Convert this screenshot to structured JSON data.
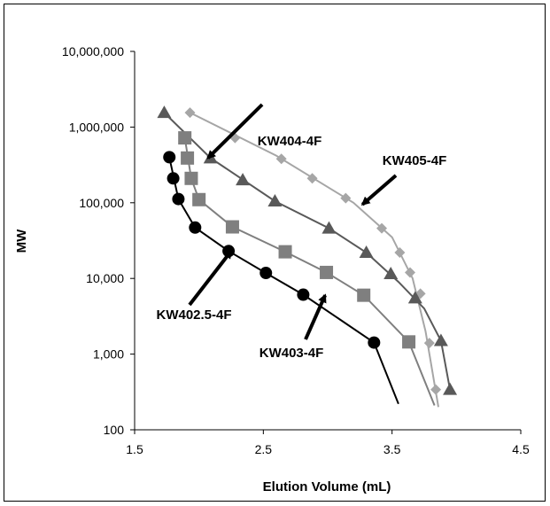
{
  "chart_data": {
    "type": "scatter",
    "xlabel": "Elution Volume (mL)",
    "ylabel": "MW",
    "xlim": [
      1.5,
      4.5
    ],
    "ylim": [
      100,
      10000000
    ],
    "y_scale": "log",
    "grid": false,
    "legend": "none",
    "x_ticks": [
      "1.5",
      "2.5",
      "3.5",
      "4.5"
    ],
    "y_ticks": [
      "100",
      "1,000",
      "10,000",
      "100,000",
      "1,000,000",
      "10,000,000"
    ],
    "series": [
      {
        "name": "KW405-4F",
        "marker": "diamond",
        "color": "#a6a6a6",
        "points": [
          [
            1.93,
            1550000
          ],
          [
            2.28,
            720000
          ],
          [
            2.64,
            380000
          ],
          [
            2.88,
            210000
          ],
          [
            3.14,
            115000
          ],
          [
            3.42,
            46000
          ],
          [
            3.56,
            22000
          ],
          [
            3.64,
            12000
          ],
          [
            3.72,
            6300
          ],
          [
            3.79,
            1400
          ],
          [
            3.84,
            340
          ]
        ],
        "fit": [
          [
            1.93,
            1550000
          ],
          [
            2.6,
            420000
          ],
          [
            3.2,
            100000
          ],
          [
            3.5,
            35000
          ],
          [
            3.66,
            10000
          ],
          [
            3.76,
            2000
          ],
          [
            3.86,
            200
          ]
        ]
      },
      {
        "name": "KW404-4F",
        "marker": "triangle",
        "color": "#595959",
        "points": [
          [
            1.73,
            1550000
          ],
          [
            2.09,
            390000
          ],
          [
            2.34,
            200000
          ],
          [
            2.59,
            105000
          ],
          [
            3.01,
            46000
          ],
          [
            3.3,
            22000
          ],
          [
            3.49,
            11500
          ],
          [
            3.68,
            5500
          ],
          [
            3.88,
            1500
          ],
          [
            3.95,
            340
          ]
        ],
        "fit": [
          [
            1.73,
            1550000
          ],
          [
            2.09,
            390000
          ],
          [
            2.59,
            105000
          ],
          [
            3.01,
            46000
          ],
          [
            3.3,
            22000
          ],
          [
            3.55,
            9000
          ],
          [
            3.75,
            4000
          ],
          [
            3.88,
            1500
          ],
          [
            3.95,
            340
          ]
        ]
      },
      {
        "name": "KW403-4F",
        "marker": "square",
        "color": "#7f7f7f",
        "points": [
          [
            1.89,
            720000
          ],
          [
            1.91,
            390000
          ],
          [
            1.94,
            210000
          ],
          [
            2.0,
            110000
          ],
          [
            2.26,
            48000
          ],
          [
            2.67,
            22500
          ],
          [
            2.99,
            12000
          ],
          [
            3.28,
            6000
          ],
          [
            3.63,
            1450
          ]
        ],
        "fit": [
          [
            1.89,
            720000
          ],
          [
            1.94,
            210000
          ],
          [
            2.0,
            110000
          ],
          [
            2.26,
            48000
          ],
          [
            2.67,
            22500
          ],
          [
            2.99,
            12000
          ],
          [
            3.28,
            6000
          ],
          [
            3.63,
            1450
          ],
          [
            3.83,
            210
          ]
        ]
      },
      {
        "name": "KW402.5-4F",
        "marker": "circle",
        "color": "#000000",
        "points": [
          [
            1.77,
            400000
          ],
          [
            1.8,
            210000
          ],
          [
            1.84,
            112000
          ],
          [
            1.97,
            47000
          ],
          [
            2.23,
            23000
          ],
          [
            2.52,
            11800
          ],
          [
            2.81,
            6100
          ],
          [
            3.36,
            1420
          ]
        ],
        "fit": [
          [
            1.77,
            400000
          ],
          [
            1.84,
            112000
          ],
          [
            1.97,
            47000
          ],
          [
            2.23,
            23000
          ],
          [
            2.52,
            11800
          ],
          [
            2.81,
            6100
          ],
          [
            3.36,
            1420
          ],
          [
            3.55,
            220
          ]
        ]
      }
    ],
    "annotations": [
      {
        "text": "KW404-4F",
        "points_to": [
          2.07,
          390000
        ]
      },
      {
        "text": "KW405-4F",
        "points_to": [
          3.27,
          95000
        ]
      },
      {
        "text": "KW402.5-4F",
        "points_to": [
          2.25,
          23000
        ]
      },
      {
        "text": "KW403-4F",
        "points_to": [
          2.98,
          6000
        ]
      }
    ]
  }
}
